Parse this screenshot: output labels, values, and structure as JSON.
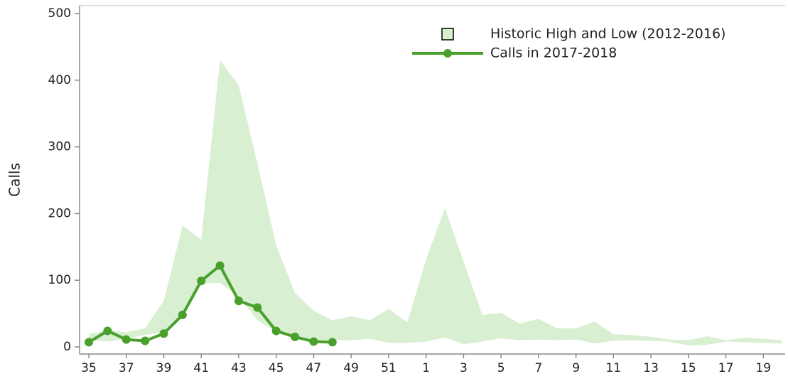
{
  "chart_data": {
    "type": "line",
    "ylabel": "Calls",
    "categories": [
      35,
      null,
      37,
      null,
      39,
      null,
      41,
      null,
      43,
      null,
      45,
      null,
      47,
      null,
      49,
      null,
      51,
      null,
      1,
      null,
      3,
      null,
      5,
      null,
      7,
      null,
      9,
      null,
      11,
      null,
      13,
      null,
      15,
      null,
      17,
      null,
      19,
      null
    ],
    "ylim": [
      0,
      500
    ],
    "yticks": [
      0,
      100,
      200,
      300,
      400,
      500
    ],
    "series": [
      {
        "name": "Historic High and Low (2012-2016)",
        "type": "band",
        "color": "#d9efd2",
        "high": [
          19,
          25,
          22,
          28,
          69,
          182,
          161,
          430,
          392,
          275,
          152,
          81,
          54,
          40,
          46,
          40,
          57,
          37,
          131,
          208,
          128,
          48,
          51,
          35,
          42,
          28,
          28,
          38,
          19,
          18,
          15,
          11,
          10,
          16,
          10,
          14,
          12,
          10
        ],
        "low": [
          10,
          8,
          12,
          18,
          22,
          45,
          95,
          96,
          75,
          40,
          22,
          15,
          10,
          10,
          10,
          12,
          6,
          6,
          8,
          14,
          4,
          8,
          13,
          10,
          11,
          10,
          11,
          5,
          9,
          10,
          9,
          8,
          2,
          3,
          8,
          7,
          6,
          5
        ]
      },
      {
        "name": "Calls in 2017-2018",
        "type": "line",
        "color": "#4aa02c",
        "values": [
          7,
          24,
          11,
          9,
          20,
          48,
          99,
          122,
          69,
          59,
          24,
          15,
          8,
          7,
          null,
          null,
          null,
          null,
          null,
          null,
          null,
          null,
          null,
          null,
          null,
          null,
          null,
          null,
          null,
          null,
          null,
          null,
          null,
          null,
          null,
          null,
          null,
          null
        ]
      }
    ],
    "legend": "upper right"
  }
}
